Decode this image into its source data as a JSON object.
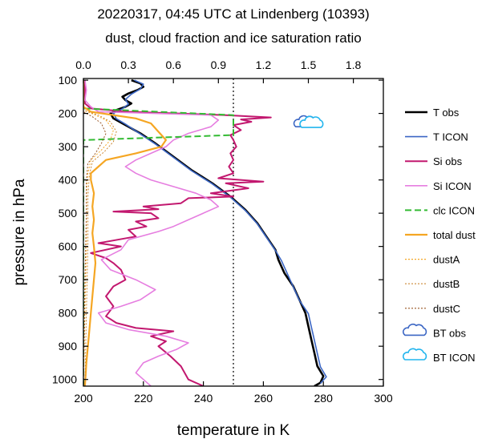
{
  "chart_data": {
    "type": "line",
    "title": "20220317, 04:45 UTC at Lindenberg (10393)",
    "subtitle": "dust, cloud fraction and ice saturation ratio",
    "xlabel": "temperature in K",
    "ylabel": "pressure in hPa",
    "xlim": [
      200,
      300
    ],
    "ylim": [
      1020,
      95
    ],
    "y_axis_inverted": true,
    "x_ticks": [
      "200",
      "220",
      "240",
      "260",
      "280",
      "300"
    ],
    "y_ticks": [
      "100",
      "200",
      "300",
      "400",
      "500",
      "600",
      "700",
      "800",
      "900",
      "1000"
    ],
    "top_axis": {
      "xlim": [
        0,
        2
      ],
      "ticks": [
        "0.0",
        "0.3",
        "0.6",
        "0.9",
        "1.2",
        "1.5",
        "1.8"
      ],
      "tick_values": [
        0,
        0.3,
        0.6,
        0.9,
        1.2,
        1.5,
        1.8
      ]
    },
    "reference_line": {
      "axis": "top",
      "value": 1.0,
      "style": "dotted"
    },
    "grid": false,
    "legend_placement": "right",
    "series": [
      {
        "name": "T obs",
        "axis": "bottom",
        "color": "#000000",
        "width": 2.6,
        "dash": "solid",
        "points": [
          [
            216,
            100
          ],
          [
            219,
            110
          ],
          [
            220,
            120
          ],
          [
            218,
            130
          ],
          [
            215,
            140
          ],
          [
            213,
            150
          ],
          [
            214,
            160
          ],
          [
            216,
            170
          ],
          [
            214,
            180
          ],
          [
            211,
            190
          ],
          [
            209,
            200
          ],
          [
            210,
            215
          ],
          [
            213,
            230
          ],
          [
            219,
            260
          ],
          [
            224,
            290
          ],
          [
            230,
            330
          ],
          [
            236,
            370
          ],
          [
            243,
            410
          ],
          [
            249,
            450
          ],
          [
            254,
            490
          ],
          [
            258,
            530
          ],
          [
            261,
            570
          ],
          [
            264,
            610
          ],
          [
            265,
            640
          ],
          [
            267,
            680
          ],
          [
            270,
            720
          ],
          [
            272,
            760
          ],
          [
            274,
            800
          ],
          [
            275,
            840
          ],
          [
            276,
            880
          ],
          [
            277,
            920
          ],
          [
            278,
            960
          ],
          [
            280,
            990
          ],
          [
            279,
            1010
          ],
          [
            277,
            1020
          ]
        ]
      },
      {
        "name": "T ICON",
        "axis": "bottom",
        "color": "#3b66c4",
        "width": 1.6,
        "dash": "solid",
        "points": [
          [
            217,
            100
          ],
          [
            220,
            112
          ],
          [
            219,
            126
          ],
          [
            216,
            142
          ],
          [
            214,
            158
          ],
          [
            215,
            172
          ],
          [
            213,
            186
          ],
          [
            210,
            200
          ],
          [
            211,
            216
          ],
          [
            214,
            232
          ],
          [
            219,
            262
          ],
          [
            224,
            292
          ],
          [
            230,
            332
          ],
          [
            236,
            372
          ],
          [
            243,
            412
          ],
          [
            249,
            452
          ],
          [
            254,
            492
          ],
          [
            258,
            532
          ],
          [
            261,
            572
          ],
          [
            264,
            612
          ],
          [
            266,
            642
          ],
          [
            268,
            682
          ],
          [
            270,
            722
          ],
          [
            272,
            762
          ],
          [
            275,
            802
          ],
          [
            276,
            842
          ],
          [
            277,
            882
          ],
          [
            278,
            922
          ],
          [
            279,
            962
          ],
          [
            281,
            992
          ],
          [
            279,
            1012
          ]
        ]
      },
      {
        "name": "Si obs",
        "axis": "top",
        "color": "#c2186f",
        "width": 2.0,
        "dash": "solid",
        "points": [
          [
            0.01,
            100
          ],
          [
            0.01,
            170
          ],
          [
            0.05,
            185
          ],
          [
            0.3,
            195
          ],
          [
            0.95,
            205
          ],
          [
            1.25,
            212
          ],
          [
            1.05,
            218
          ],
          [
            1.12,
            225
          ],
          [
            1.0,
            235
          ],
          [
            1.05,
            250
          ],
          [
            0.98,
            265
          ],
          [
            1.0,
            280
          ],
          [
            1.02,
            300
          ],
          [
            0.98,
            320
          ],
          [
            1.0,
            340
          ],
          [
            0.97,
            360
          ],
          [
            1.0,
            380
          ],
          [
            0.9,
            395
          ],
          [
            1.2,
            405
          ],
          [
            0.95,
            410
          ],
          [
            1.1,
            425
          ],
          [
            0.85,
            440
          ],
          [
            1.0,
            450
          ],
          [
            0.7,
            455
          ],
          [
            0.65,
            470
          ],
          [
            0.4,
            480
          ],
          [
            0.5,
            488
          ],
          [
            0.2,
            495
          ],
          [
            0.45,
            500
          ],
          [
            0.5,
            515
          ],
          [
            0.35,
            525
          ],
          [
            0.42,
            540
          ],
          [
            0.3,
            550
          ],
          [
            0.35,
            570
          ],
          [
            0.1,
            590
          ],
          [
            0.25,
            600
          ],
          [
            0.05,
            620
          ],
          [
            0.15,
            635
          ],
          [
            0.2,
            650
          ],
          [
            0.25,
            670
          ],
          [
            0.28,
            700
          ],
          [
            0.2,
            720
          ],
          [
            0.15,
            750
          ],
          [
            0.2,
            780
          ],
          [
            0.15,
            810
          ],
          [
            0.22,
            830
          ],
          [
            0.35,
            845
          ],
          [
            0.6,
            855
          ],
          [
            0.45,
            870
          ],
          [
            0.55,
            885
          ],
          [
            0.5,
            900
          ],
          [
            0.58,
            930
          ],
          [
            0.65,
            960
          ],
          [
            0.7,
            1000
          ],
          [
            0.8,
            1020
          ]
        ]
      },
      {
        "name": "Si ICON",
        "axis": "top",
        "color": "#e67ee0",
        "width": 1.6,
        "dash": "solid",
        "points": [
          [
            0.01,
            100
          ],
          [
            0.02,
            130
          ],
          [
            0.01,
            160
          ],
          [
            0.05,
            180
          ],
          [
            0.1,
            195
          ],
          [
            0.85,
            205
          ],
          [
            0.9,
            220
          ],
          [
            0.85,
            240
          ],
          [
            0.7,
            260
          ],
          [
            0.6,
            280
          ],
          [
            0.55,
            300
          ],
          [
            0.45,
            320
          ],
          [
            0.35,
            340
          ],
          [
            0.28,
            360
          ],
          [
            0.35,
            380
          ],
          [
            0.45,
            400
          ],
          [
            0.6,
            420
          ],
          [
            0.75,
            440
          ],
          [
            0.85,
            460
          ],
          [
            0.9,
            480
          ],
          [
            0.8,
            500
          ],
          [
            0.7,
            520
          ],
          [
            0.6,
            540
          ],
          [
            0.5,
            555
          ],
          [
            0.3,
            580
          ],
          [
            0.25,
            610
          ],
          [
            0.12,
            640
          ],
          [
            0.18,
            670
          ],
          [
            0.35,
            700
          ],
          [
            0.48,
            730
          ],
          [
            0.38,
            760
          ],
          [
            0.25,
            780
          ],
          [
            0.1,
            800
          ],
          [
            0.15,
            830
          ],
          [
            0.3,
            850
          ],
          [
            0.55,
            870
          ],
          [
            0.7,
            890
          ],
          [
            0.62,
            910
          ],
          [
            0.5,
            930
          ],
          [
            0.4,
            950
          ],
          [
            0.35,
            980
          ],
          [
            0.4,
            1000
          ],
          [
            0.45,
            1020
          ]
        ]
      },
      {
        "name": "clc ICON",
        "axis": "top",
        "color": "#33bb33",
        "width": 2.0,
        "dash": "8,4",
        "points": [
          [
            0.0,
            100
          ],
          [
            0.0,
            185
          ],
          [
            1.0,
            205
          ],
          [
            1.0,
            265
          ],
          [
            0.0,
            280
          ],
          [
            0.0,
            1020
          ]
        ]
      },
      {
        "name": "total dust",
        "axis": "top",
        "color": "#f5a623",
        "width": 2.2,
        "dash": "solid",
        "points": [
          [
            0.0,
            100
          ],
          [
            0.0,
            180
          ],
          [
            0.05,
            195
          ],
          [
            0.2,
            205
          ],
          [
            0.35,
            215
          ],
          [
            0.45,
            230
          ],
          [
            0.5,
            255
          ],
          [
            0.55,
            280
          ],
          [
            0.52,
            300
          ],
          [
            0.35,
            320
          ],
          [
            0.15,
            340
          ],
          [
            0.1,
            360
          ],
          [
            0.05,
            380
          ],
          [
            0.05,
            400
          ],
          [
            0.06,
            420
          ],
          [
            0.07,
            440
          ],
          [
            0.06,
            480
          ],
          [
            0.07,
            520
          ],
          [
            0.06,
            560
          ],
          [
            0.07,
            600
          ],
          [
            0.08,
            650
          ],
          [
            0.07,
            700
          ],
          [
            0.06,
            750
          ],
          [
            0.05,
            800
          ],
          [
            0.04,
            850
          ],
          [
            0.03,
            900
          ],
          [
            0.02,
            950
          ],
          [
            0.01,
            1020
          ]
        ]
      },
      {
        "name": "dustA",
        "axis": "top",
        "color": "#f5a623",
        "width": 1.0,
        "dash": "2,2",
        "points": [
          [
            0.0,
            100
          ],
          [
            0.0,
            190
          ],
          [
            0.08,
            205
          ],
          [
            0.15,
            220
          ],
          [
            0.2,
            250
          ],
          [
            0.18,
            280
          ],
          [
            0.12,
            310
          ],
          [
            0.05,
            340
          ],
          [
            0.03,
            380
          ],
          [
            0.02,
            450
          ],
          [
            0.02,
            600
          ],
          [
            0.01,
            800
          ],
          [
            0.0,
            1020
          ]
        ]
      },
      {
        "name": "dustB",
        "axis": "top",
        "color": "#cc8833",
        "width": 1.0,
        "dash": "2,2",
        "points": [
          [
            0.0,
            100
          ],
          [
            0.0,
            190
          ],
          [
            0.1,
            205
          ],
          [
            0.18,
            225
          ],
          [
            0.22,
            255
          ],
          [
            0.2,
            285
          ],
          [
            0.14,
            315
          ],
          [
            0.06,
            345
          ],
          [
            0.04,
            385
          ],
          [
            0.03,
            450
          ],
          [
            0.03,
            600
          ],
          [
            0.02,
            800
          ],
          [
            0.01,
            1020
          ]
        ]
      },
      {
        "name": "dustC",
        "axis": "top",
        "color": "#995522",
        "width": 1.0,
        "dash": "2,2",
        "points": [
          [
            0.0,
            100
          ],
          [
            0.0,
            195
          ],
          [
            0.06,
            210
          ],
          [
            0.12,
            230
          ],
          [
            0.15,
            260
          ],
          [
            0.12,
            290
          ],
          [
            0.08,
            320
          ],
          [
            0.03,
            350
          ],
          [
            0.02,
            400
          ],
          [
            0.02,
            500
          ],
          [
            0.01,
            700
          ],
          [
            0.0,
            1020
          ]
        ]
      }
    ],
    "markers": [
      {
        "name": "BT obs",
        "axis": "bottom",
        "color": "#3b66c4",
        "x": 274,
        "y": 228
      },
      {
        "name": "BT ICON",
        "axis": "bottom",
        "color": "#22b5ee",
        "x": 276,
        "y": 230
      }
    ]
  }
}
